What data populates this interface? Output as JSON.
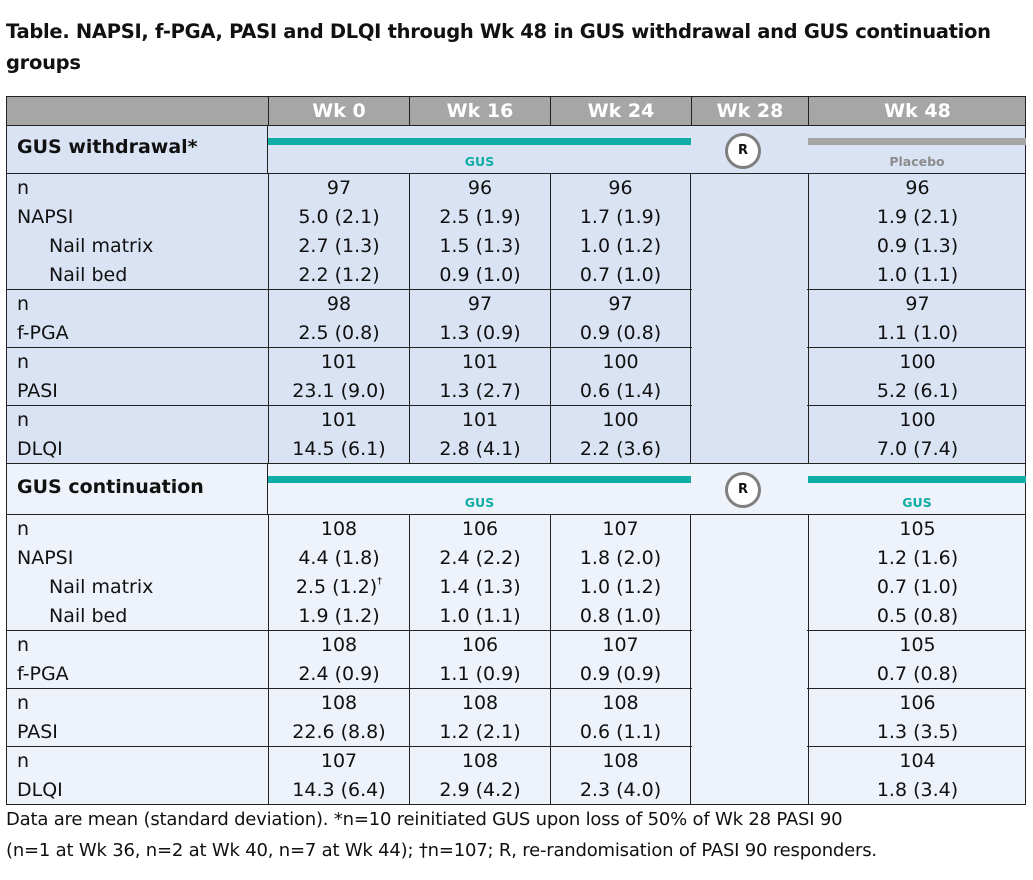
{
  "title_line1": "Table. NAPSI, f-PGA, PASI and DLQI through Wk 48 in GUS withdrawal and GUS continuation",
  "title_line2": "groups",
  "columns": [
    "",
    "Wk 0",
    "Wk 16",
    "Wk 24",
    "Wk 28",
    "Wk 48"
  ],
  "colors": {
    "header_bg": "#a6a6a6",
    "section1_bg": "#dae3f3",
    "section2_bg": "#eef2fa",
    "gus_bar": "#0fada5",
    "placebo_bar": "#a6a6a6",
    "r_circle_border": "#7f7f7f"
  },
  "sections": [
    {
      "label": "GUS withdrawal*",
      "period1_label": "GUS",
      "period2_label": "Placebo",
      "randomisation_marker": "R",
      "blocks": [
        {
          "rows": [
            {
              "label": "n",
              "indent": false,
              "values": [
                "97",
                "96",
                "96",
                "96"
              ]
            },
            {
              "label": "NAPSI",
              "indent": false,
              "values": [
                "5.0 (2.1)",
                "2.5 (1.9)",
                "1.7 (1.9)",
                "1.9 (2.1)"
              ]
            },
            {
              "label": "Nail matrix",
              "indent": true,
              "values": [
                "2.7 (1.3)",
                "1.5 (1.3)",
                "1.0 (1.2)",
                "0.9 (1.3)"
              ]
            },
            {
              "label": "Nail bed",
              "indent": true,
              "values": [
                "2.2 (1.2)",
                "0.9 (1.0)",
                "0.7 (1.0)",
                "1.0 (1.1)"
              ]
            }
          ]
        },
        {
          "rows": [
            {
              "label": "n",
              "indent": false,
              "values": [
                "98",
                "97",
                "97",
                "97"
              ]
            },
            {
              "label": "f-PGA",
              "indent": false,
              "values": [
                "2.5 (0.8)",
                "1.3 (0.9)",
                "0.9 (0.8)",
                "1.1 (1.0)"
              ]
            }
          ]
        },
        {
          "rows": [
            {
              "label": "n",
              "indent": false,
              "values": [
                "101",
                "101",
                "100",
                "100"
              ]
            },
            {
              "label": "PASI",
              "indent": false,
              "values": [
                "23.1 (9.0)",
                "1.3 (2.7)",
                "0.6 (1.4)",
                "5.2 (6.1)"
              ]
            }
          ]
        },
        {
          "rows": [
            {
              "label": "n",
              "indent": false,
              "values": [
                "101",
                "101",
                "100",
                "100"
              ]
            },
            {
              "label": "DLQI",
              "indent": false,
              "values": [
                "14.5 (6.1)",
                "2.8 (4.1)",
                "2.2 (3.6)",
                "7.0 (7.4)"
              ]
            }
          ]
        }
      ]
    },
    {
      "label": "GUS continuation",
      "period1_label": "GUS",
      "period2_label": "GUS",
      "randomisation_marker": "R",
      "blocks": [
        {
          "rows": [
            {
              "label": "n",
              "indent": false,
              "values": [
                "108",
                "106",
                "107",
                "105"
              ]
            },
            {
              "label": "NAPSI",
              "indent": false,
              "values": [
                "4.4 (1.8)",
                "2.4 (2.2)",
                "1.8 (2.0)",
                "1.2 (1.6)"
              ]
            },
            {
              "label": "Nail matrix",
              "indent": true,
              "values": [
                "2.5 (1.2)",
                "1.4 (1.3)",
                "1.0 (1.2)",
                "0.7 (1.0)"
              ],
              "sup": "†"
            },
            {
              "label": "Nail bed",
              "indent": true,
              "values": [
                "1.9 (1.2)",
                "1.0 (1.1)",
                "0.8 (1.0)",
                "0.5 (0.8)"
              ]
            }
          ]
        },
        {
          "rows": [
            {
              "label": "n",
              "indent": false,
              "values": [
                "108",
                "106",
                "107",
                "105"
              ]
            },
            {
              "label": "f-PGA",
              "indent": false,
              "values": [
                "2.4 (0.9)",
                "1.1 (0.9)",
                "0.9 (0.9)",
                "0.7 (0.8)"
              ]
            }
          ]
        },
        {
          "rows": [
            {
              "label": "n",
              "indent": false,
              "values": [
                "108",
                "108",
                "108",
                "106"
              ]
            },
            {
              "label": "PASI",
              "indent": false,
              "values": [
                "22.6 (8.8)",
                "1.2 (2.1)",
                "0.6 (1.1)",
                "1.3 (3.5)"
              ]
            }
          ]
        },
        {
          "rows": [
            {
              "label": "n",
              "indent": false,
              "values": [
                "107",
                "108",
                "108",
                "104"
              ]
            },
            {
              "label": "DLQI",
              "indent": false,
              "values": [
                "14.3 (6.4)",
                "2.9 (4.2)",
                "2.3 (4.0)",
                "1.8 (3.4)"
              ]
            }
          ]
        }
      ]
    }
  ],
  "footnote_line1": "Data are mean (standard deviation). *n=10 reinitiated GUS upon loss of 50% of Wk 28 PASI 90",
  "footnote_line2": "(n=1 at Wk 36, n=2 at Wk 40, n=7 at Wk 44); †n=107; R, re-randomisation of PASI 90 responders."
}
